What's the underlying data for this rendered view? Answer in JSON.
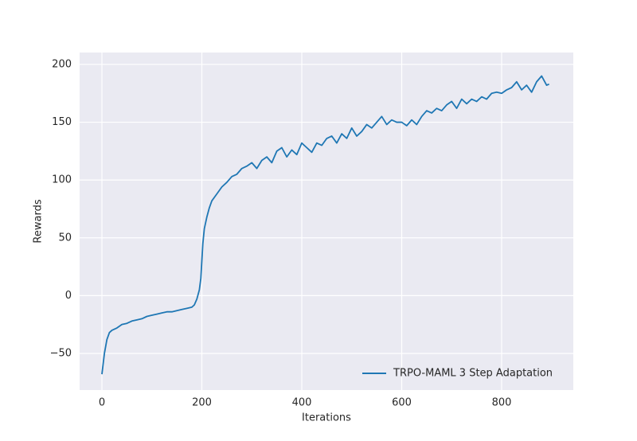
{
  "chart_data": {
    "type": "line",
    "x_label": "Iterations",
    "y_label": "Rewards",
    "x": [
      0,
      5,
      10,
      15,
      20,
      30,
      40,
      50,
      60,
      70,
      80,
      90,
      100,
      110,
      120,
      130,
      140,
      150,
      160,
      170,
      180,
      185,
      190,
      195,
      198,
      200,
      202,
      205,
      210,
      215,
      220,
      230,
      240,
      250,
      260,
      270,
      280,
      290,
      300,
      310,
      320,
      330,
      340,
      350,
      360,
      370,
      380,
      390,
      400,
      410,
      420,
      430,
      440,
      450,
      460,
      470,
      480,
      490,
      500,
      510,
      520,
      530,
      540,
      550,
      560,
      570,
      580,
      590,
      600,
      610,
      620,
      630,
      640,
      650,
      660,
      670,
      680,
      690,
      700,
      710,
      720,
      730,
      740,
      750,
      760,
      770,
      780,
      790,
      800,
      810,
      820,
      830,
      840,
      850,
      860,
      870,
      880,
      890,
      895
    ],
    "series": [
      {
        "name": "TRPO-MAML 3 Step Adaptation",
        "color": "#1f77b4",
        "values": [
          -68,
          -50,
          -38,
          -32,
          -30,
          -28,
          -25,
          -24,
          -22,
          -21,
          -20,
          -18,
          -17,
          -16,
          -15,
          -14,
          -14,
          -13,
          -12,
          -11,
          -10,
          -8,
          -3,
          5,
          15,
          30,
          45,
          58,
          68,
          76,
          82,
          88,
          94,
          98,
          103,
          105,
          110,
          112,
          115,
          110,
          117,
          120,
          115,
          125,
          128,
          120,
          126,
          122,
          132,
          128,
          124,
          132,
          130,
          136,
          138,
          132,
          140,
          136,
          145,
          138,
          142,
          148,
          145,
          150,
          155,
          148,
          152,
          150,
          150,
          147,
          152,
          148,
          155,
          160,
          158,
          162,
          160,
          165,
          168,
          162,
          170,
          166,
          170,
          168,
          172,
          170,
          175,
          176,
          175,
          178,
          180,
          185,
          178,
          182,
          176,
          185,
          190,
          182,
          183
        ]
      }
    ],
    "xlim": [
      -44.6,
      943.4
    ],
    "ylim": [
      -81.7,
      210.3
    ],
    "xticks": [
      0,
      200,
      400,
      600,
      800
    ],
    "yticks": [
      {
        "value": -50,
        "label": "−50"
      },
      0,
      50,
      100,
      150,
      200
    ],
    "grid": true,
    "legend": "lower-right"
  }
}
